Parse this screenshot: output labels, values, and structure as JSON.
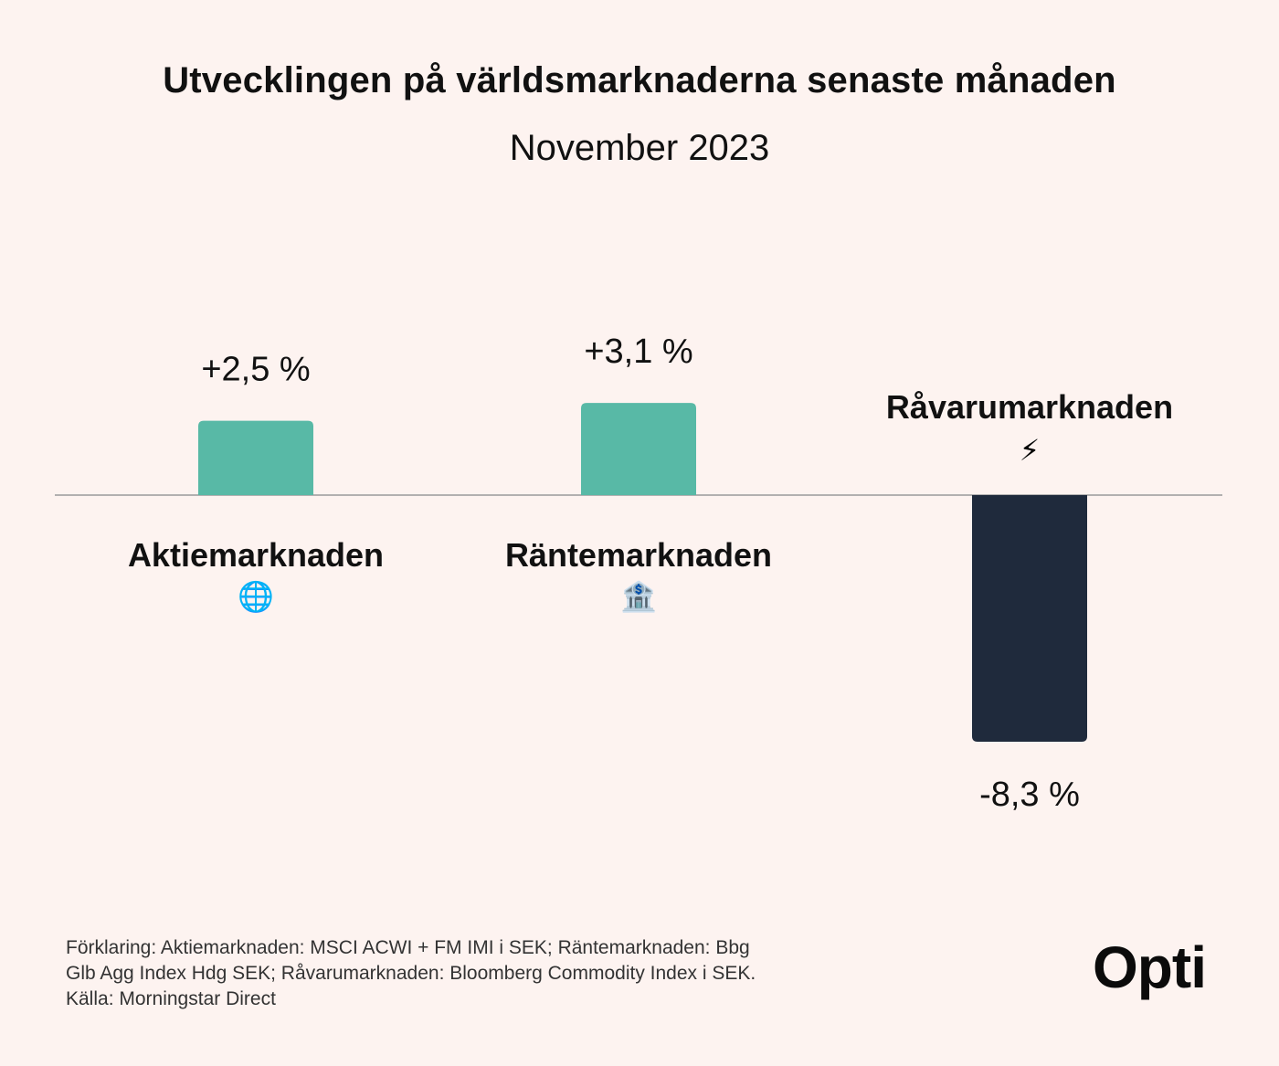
{
  "title": "Utvecklingen på världsmarknaderna senaste månaden",
  "subtitle": "November 2023",
  "colors": {
    "positive": "#58b9a6",
    "negative": "#1f2a3c",
    "baseline": "#9a9a9a",
    "background": "#fdf3f0"
  },
  "chart_data": {
    "type": "bar",
    "categories": [
      "Aktiemarknaden",
      "Räntemarknaden",
      "Råvarumarknaden"
    ],
    "icons": [
      "globe-icon",
      "bank-icon",
      "lightning-icon"
    ],
    "icon_glyphs": [
      "🌐",
      "🏦",
      "⚡"
    ],
    "values": [
      2.5,
      3.1,
      -8.3
    ],
    "value_labels": [
      "+2,5 %",
      "+3,1 %",
      "-8,3 %"
    ],
    "unit": "%",
    "grid": false,
    "legend": "none"
  },
  "footnote": {
    "line1": "Förklaring: Aktiemarknaden: MSCI ACWI + FM IMI i SEK; Räntemarknaden: Bbg",
    "line2": "Glb Agg Index Hdg SEK; Råvarumarknaden: Bloomberg Commodity Index i SEK.",
    "line3": "Källa: Morningstar Direct"
  },
  "logo": "Opti"
}
